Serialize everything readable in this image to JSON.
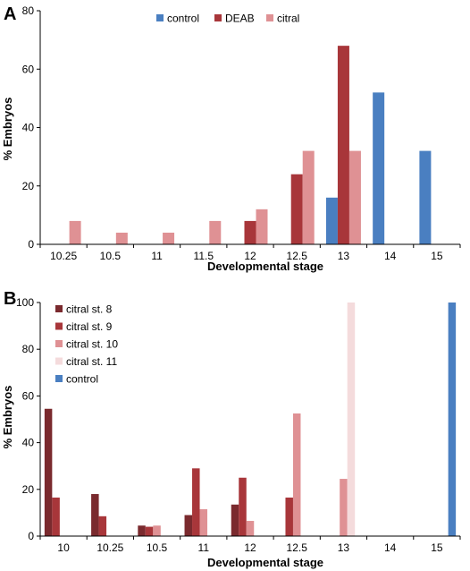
{
  "chart_data": [
    {
      "panel": "A",
      "type": "bar",
      "categories": [
        "10.25",
        "10.5",
        "11",
        "11.5",
        "12",
        "12.5",
        "13",
        "14",
        "15"
      ],
      "series": [
        {
          "name": "control",
          "color": "#4a7fc1",
          "values": [
            0,
            0,
            0,
            0,
            0,
            0,
            16,
            52,
            32
          ]
        },
        {
          "name": "DEAB",
          "color": "#a8363a",
          "values": [
            0,
            0,
            0,
            0,
            8,
            24,
            68,
            0,
            0
          ]
        },
        {
          "name": "citral",
          "color": "#df9194",
          "values": [
            8,
            4,
            4,
            8,
            12,
            32,
            32,
            0,
            0
          ]
        }
      ],
      "xlabel": "Developmental stage",
      "ylabel": "% Embryos",
      "ylim": [
        0,
        80
      ],
      "yticks": [
        0,
        20,
        40,
        60,
        80
      ],
      "legend": "top-center"
    },
    {
      "panel": "B",
      "type": "bar",
      "categories": [
        "10",
        "10.25",
        "10.5",
        "11",
        "12",
        "12.5",
        "13",
        "14",
        "15"
      ],
      "series": [
        {
          "name": "citral st. 8",
          "color": "#7a2a2e",
          "values": [
            54.5,
            18,
            4.5,
            9,
            13.5,
            0,
            0,
            0,
            0
          ]
        },
        {
          "name": "citral st. 9",
          "color": "#a8363a",
          "values": [
            16.5,
            8.5,
            4,
            29,
            25,
            16.5,
            0,
            0,
            0
          ]
        },
        {
          "name": "citral st. 10",
          "color": "#df9194",
          "values": [
            0,
            0,
            4.5,
            11.5,
            6.5,
            52.5,
            24.5,
            0,
            0
          ]
        },
        {
          "name": "citral st. 11",
          "color": "#f4dbdc",
          "values": [
            0,
            0,
            0,
            0,
            0,
            0,
            100,
            0,
            0
          ]
        },
        {
          "name": "control",
          "color": "#4a7fc1",
          "values": [
            0,
            0,
            0,
            0,
            0,
            0,
            0,
            0,
            100
          ]
        }
      ],
      "xlabel": "Developmental stage",
      "ylabel": "% Embryos",
      "ylim": [
        0,
        100
      ],
      "yticks": [
        0,
        20,
        40,
        60,
        80,
        100
      ],
      "legend": "top-left"
    }
  ]
}
